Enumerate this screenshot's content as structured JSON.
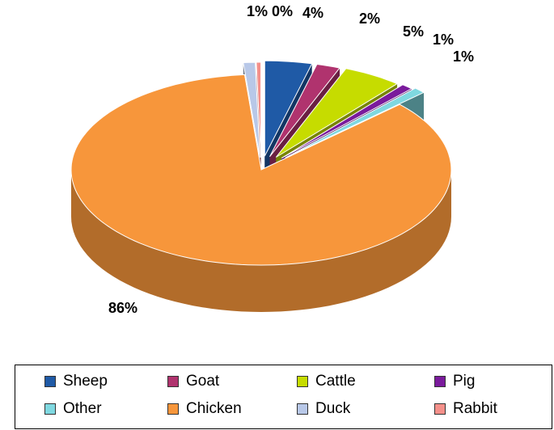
{
  "chart_data": {
    "type": "pie",
    "title": "",
    "legend_position": "bottom",
    "slices": [
      {
        "label": "Sheep",
        "value": 4,
        "label_text": "4%",
        "color": "#1f5aa6"
      },
      {
        "label": "Goat",
        "value": 2,
        "label_text": "2%",
        "color": "#b0336e"
      },
      {
        "label": "Cattle",
        "value": 5,
        "label_text": "5%",
        "color": "#c6dc00"
      },
      {
        "label": "Pig",
        "value": 1,
        "label_text": "1%",
        "color": "#7a1a9c"
      },
      {
        "label": "Other",
        "value": 1,
        "label_text": "1%",
        "color": "#7fd8e0"
      },
      {
        "label": "Chicken",
        "value": 86,
        "label_text": "86%",
        "color": "#f7963b"
      },
      {
        "label": "Duck",
        "value": 1,
        "label_text": "1%",
        "color": "#b8c8e8"
      },
      {
        "label": "Rabbit",
        "value": 0,
        "label_text": "0%",
        "color": "#f4908a"
      }
    ]
  }
}
